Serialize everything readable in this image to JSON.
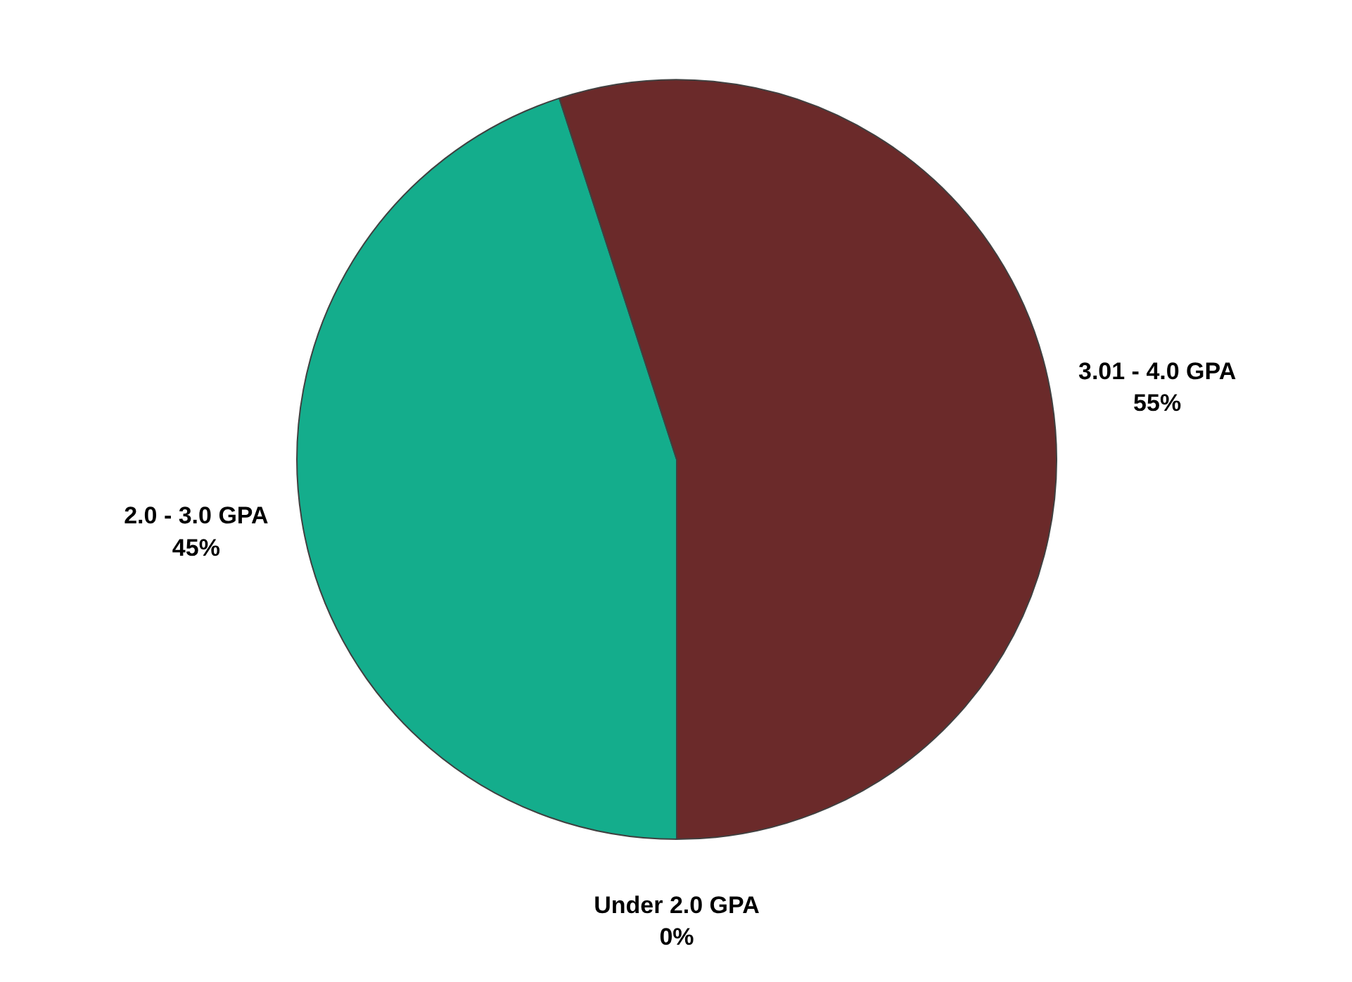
{
  "chart_data": {
    "type": "pie",
    "categories": [
      "Under 2.0 GPA",
      "2.0 - 3.0 GPA",
      "3.01 - 4.0 GPA"
    ],
    "values": [
      0,
      45,
      55
    ],
    "colors": [
      "#4f81bd",
      "#14ad8c",
      "#6b2a2a"
    ],
    "value_labels": [
      "0%",
      "45%",
      "55%"
    ]
  }
}
